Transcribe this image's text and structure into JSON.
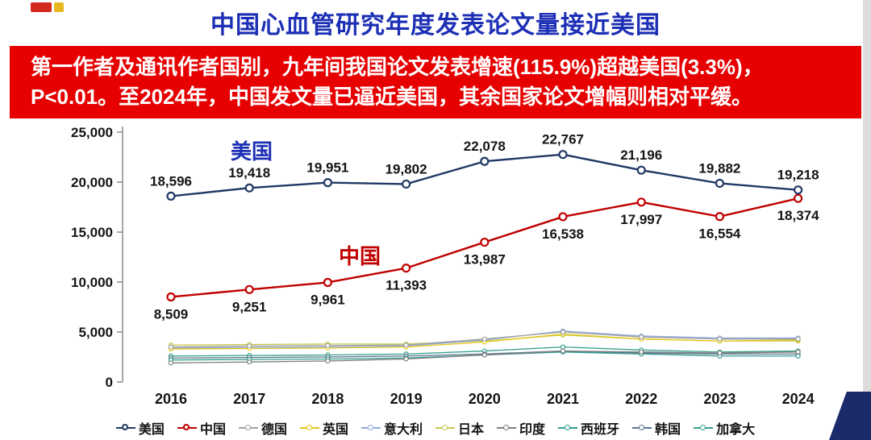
{
  "title": "中国心血管研究年度发表论文量接近美国",
  "banner": {
    "line1": "第一作者及通讯作者国别，九年间我国论文发表增速(115.9%)超越美国(3.3%)，",
    "line2": "P<0.01。至2024年，中国发文量已逼近美国，其余国家论文增幅则相对平缓。"
  },
  "colors": {
    "title_blue": "#1c2fb5",
    "banner_red": "#e60000",
    "usa_navy": "#203864",
    "china_red": "#c00000",
    "corner_navy": "#1b2a6b"
  },
  "chart_data": {
    "type": "line",
    "x": [
      2016,
      2017,
      2018,
      2019,
      2020,
      2021,
      2022,
      2023,
      2024
    ],
    "ylim": [
      0,
      25000
    ],
    "yticks": [
      "25,000",
      "20,000",
      "15,000",
      "10,000",
      "5,000",
      "0"
    ],
    "grid": false,
    "legend_position": "bottom",
    "annotations": [
      {
        "text": "美国",
        "color": "#1c2fb5"
      },
      {
        "text": "中国",
        "color": "#c00000"
      }
    ],
    "series": [
      {
        "name": "美国",
        "color": "#203864",
        "data_labels": "above",
        "values": [
          18596,
          19418,
          19951,
          19802,
          22078,
          22767,
          21196,
          19882,
          19218
        ]
      },
      {
        "name": "中国",
        "color": "#c00000",
        "data_labels": "below",
        "values": [
          8509,
          9251,
          9961,
          11393,
          13987,
          16538,
          17997,
          16554,
          18374
        ]
      },
      {
        "name": "德国",
        "color": "#9e9e9e",
        "data_labels": "none",
        "values": [
          3500,
          3600,
          3650,
          3700,
          4300,
          5000,
          4500,
          4300,
          4300
        ]
      },
      {
        "name": "英国",
        "color": "#e6c619",
        "data_labels": "none",
        "values": [
          3300,
          3350,
          3400,
          3500,
          4000,
          4800,
          4300,
          4100,
          4200
        ]
      },
      {
        "name": "意大利",
        "color": "#8faadc",
        "data_labels": "none",
        "values": [
          3400,
          3450,
          3500,
          3600,
          4200,
          5100,
          4600,
          4400,
          4400
        ]
      },
      {
        "name": "日本",
        "color": "#c9c94d",
        "data_labels": "none",
        "values": [
          3700,
          3750,
          3800,
          3800,
          4100,
          4700,
          4300,
          4100,
          4100
        ]
      },
      {
        "name": "印度",
        "color": "#7f7f7f",
        "data_labels": "none",
        "values": [
          1900,
          2000,
          2100,
          2300,
          2700,
          3100,
          3000,
          2900,
          3000
        ]
      },
      {
        "name": "西班牙",
        "color": "#2e9e8f",
        "data_labels": "none",
        "values": [
          2200,
          2250,
          2300,
          2400,
          2700,
          3000,
          2800,
          2600,
          2600
        ]
      },
      {
        "name": "韩国",
        "color": "#5b738b",
        "data_labels": "none",
        "values": [
          2400,
          2450,
          2500,
          2600,
          2800,
          3100,
          2900,
          2800,
          2800
        ]
      },
      {
        "name": "加拿大",
        "color": "#35a08c",
        "data_labels": "none",
        "values": [
          2600,
          2650,
          2700,
          2800,
          3100,
          3500,
          3200,
          3000,
          3100
        ]
      }
    ]
  }
}
